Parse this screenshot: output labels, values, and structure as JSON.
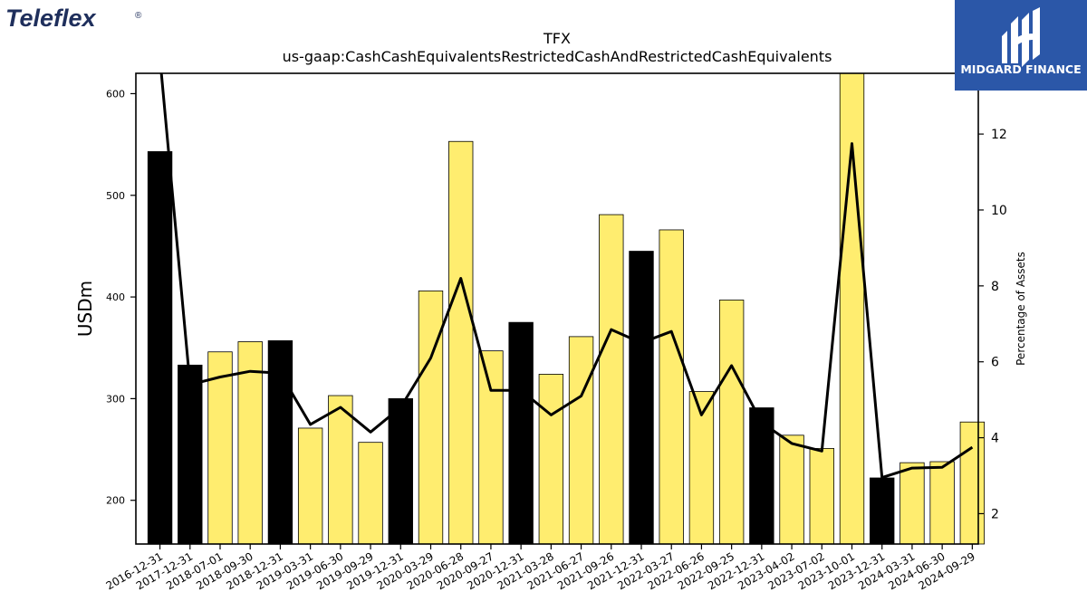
{
  "brand": {
    "company_logo_text": "Teleflex",
    "company_logo_mark": "®",
    "company_logo_color": "#1f2f5c",
    "publisher_name": "MIDGARD FINANCE",
    "publisher_bg": "#2b57a8"
  },
  "chart_data": {
    "type": "bar+line",
    "title": "TFX",
    "subtitle": "us-gaap:CashCashEquivalentsRestrictedCashAndRestrictedCashEquivalents",
    "ylabel": "USDm",
    "y2label": "Percentage of Assets",
    "ylim": [
      157,
      620
    ],
    "y2lim": [
      1.2,
      13.6
    ],
    "yticks": [
      200,
      300,
      400,
      500,
      600
    ],
    "y2ticks": [
      2,
      4,
      6,
      8,
      10,
      12
    ],
    "categories": [
      "2016-12-31",
      "2017-12-31",
      "2018-07-01",
      "2018-09-30",
      "2018-12-31",
      "2019-03-31",
      "2019-06-30",
      "2019-09-29",
      "2019-12-31",
      "2020-03-29",
      "2020-06-28",
      "2020-09-27",
      "2020-12-31",
      "2021-03-28",
      "2021-06-27",
      "2021-09-26",
      "2021-12-31",
      "2022-03-27",
      "2022-06-26",
      "2022-09-25",
      "2022-12-31",
      "2023-04-02",
      "2023-07-02",
      "2023-10-01",
      "2023-12-31",
      "2024-03-31",
      "2024-06-30",
      "2024-09-29"
    ],
    "series": [
      {
        "kind": "bar",
        "values": [
          543,
          333,
          346,
          356,
          357,
          271,
          303,
          257,
          300,
          406,
          553,
          347,
          375,
          324,
          361,
          481,
          445,
          466,
          307,
          397,
          291,
          264,
          251,
          620,
          222,
          237,
          238,
          277
        ],
        "annual": [
          true,
          true,
          false,
          false,
          true,
          false,
          false,
          false,
          true,
          false,
          false,
          false,
          true,
          false,
          false,
          false,
          true,
          false,
          false,
          false,
          true,
          false,
          false,
          false,
          true,
          false,
          false,
          false
        ]
      },
      {
        "kind": "line",
        "axis": "right",
        "values": [
          14.0,
          5.4,
          5.6,
          5.75,
          5.7,
          4.35,
          4.8,
          4.15,
          4.8,
          6.1,
          8.2,
          5.25,
          5.25,
          4.6,
          5.1,
          6.85,
          6.5,
          6.8,
          4.6,
          5.9,
          4.4,
          3.85,
          3.65,
          11.75,
          2.95,
          3.2,
          3.22,
          3.75
        ]
      }
    ],
    "colors": {
      "annual_bar": "#000000",
      "quarter_bar": "#ffed6f",
      "line": "#000000"
    },
    "grid": false
  }
}
